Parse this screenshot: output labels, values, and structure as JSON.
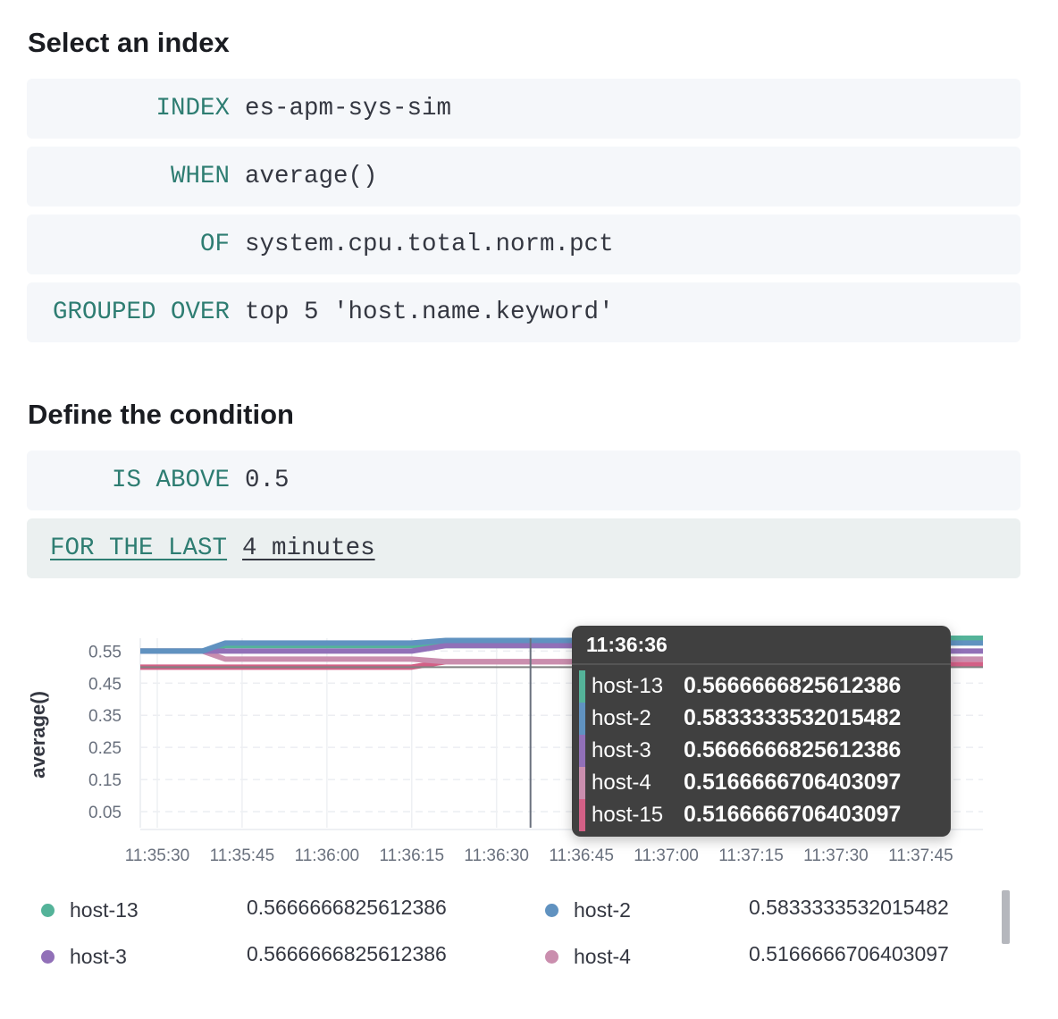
{
  "index_section": {
    "title": "Select an index",
    "rows": [
      {
        "keyword": "INDEX",
        "value": "es-apm-sys-sim"
      },
      {
        "keyword": "WHEN",
        "value": "average()"
      },
      {
        "keyword": "OF",
        "value": "system.cpu.total.norm.pct"
      },
      {
        "keyword": "GROUPED OVER",
        "value": "top 5 'host.name.keyword'"
      }
    ]
  },
  "condition_section": {
    "title": "Define the condition",
    "rows": [
      {
        "keyword": "IS ABOVE",
        "value": "0.5"
      },
      {
        "keyword": "FOR THE LAST",
        "value": "4 minutes"
      }
    ]
  },
  "chart_data": {
    "type": "line",
    "ylabel": "average()",
    "xlabel": "",
    "ylim": [
      0,
      0.59
    ],
    "yticks": [
      "0.55",
      "0.45",
      "0.35",
      "0.25",
      "0.15",
      "0.05"
    ],
    "xticks": [
      "11:35:30",
      "11:35:45",
      "11:36:00",
      "11:36:15",
      "11:36:30",
      "11:36:45",
      "11:37:00",
      "11:37:15",
      "11:37:30",
      "11:37:45"
    ],
    "xlim": [
      "11:35:27",
      "11:37:56"
    ],
    "grid": true,
    "threshold": 0.5,
    "x": [
      "11:35:27",
      "11:35:38",
      "11:35:42",
      "11:36:15",
      "11:36:21",
      "11:37:37",
      "11:37:43",
      "11:37:56"
    ],
    "series": [
      {
        "name": "host-13",
        "color": "#54B399",
        "values": [
          0.55,
          0.55,
          0.567,
          0.567,
          0.567,
          0.567,
          0.59,
          0.59
        ]
      },
      {
        "name": "host-2",
        "color": "#6092C0",
        "values": [
          0.55,
          0.55,
          0.575,
          0.575,
          0.583,
          0.583,
          0.575,
          0.575
        ]
      },
      {
        "name": "host-3",
        "color": "#9170B8",
        "values": [
          0.55,
          0.55,
          0.55,
          0.55,
          0.567,
          0.567,
          0.55,
          0.55
        ]
      },
      {
        "name": "host-4",
        "color": "#CA8EAE",
        "values": [
          0.55,
          0.55,
          0.525,
          0.525,
          0.517,
          0.517,
          0.525,
          0.525
        ]
      },
      {
        "name": "host-15",
        "color": "#D36086",
        "values": [
          0.5,
          0.5,
          0.5,
          0.5,
          0.517,
          0.517,
          0.508,
          0.508
        ]
      }
    ],
    "crosshair": "11:36:36",
    "tooltip": {
      "title": "11:36:36",
      "rows": [
        {
          "name": "host-13",
          "value": "0.5666666825612386",
          "color": "#54B399"
        },
        {
          "name": "host-2",
          "value": "0.5833333532015482",
          "color": "#6092C0"
        },
        {
          "name": "host-3",
          "value": "0.5666666825612386",
          "color": "#9170B8"
        },
        {
          "name": "host-4",
          "value": "0.5166666706403097",
          "color": "#CA8EAE"
        },
        {
          "name": "host-15",
          "value": "0.5166666706403097",
          "color": "#D36086"
        }
      ]
    },
    "legend": [
      {
        "name": "host-13",
        "value": "0.5666666825612386",
        "color": "#54B399"
      },
      {
        "name": "host-2",
        "value": "0.5833333532015482",
        "color": "#6092C0"
      },
      {
        "name": "host-3",
        "value": "0.5666666825612386",
        "color": "#9170B8"
      },
      {
        "name": "host-4",
        "value": "0.5166666706403097",
        "color": "#CA8EAE"
      }
    ]
  }
}
